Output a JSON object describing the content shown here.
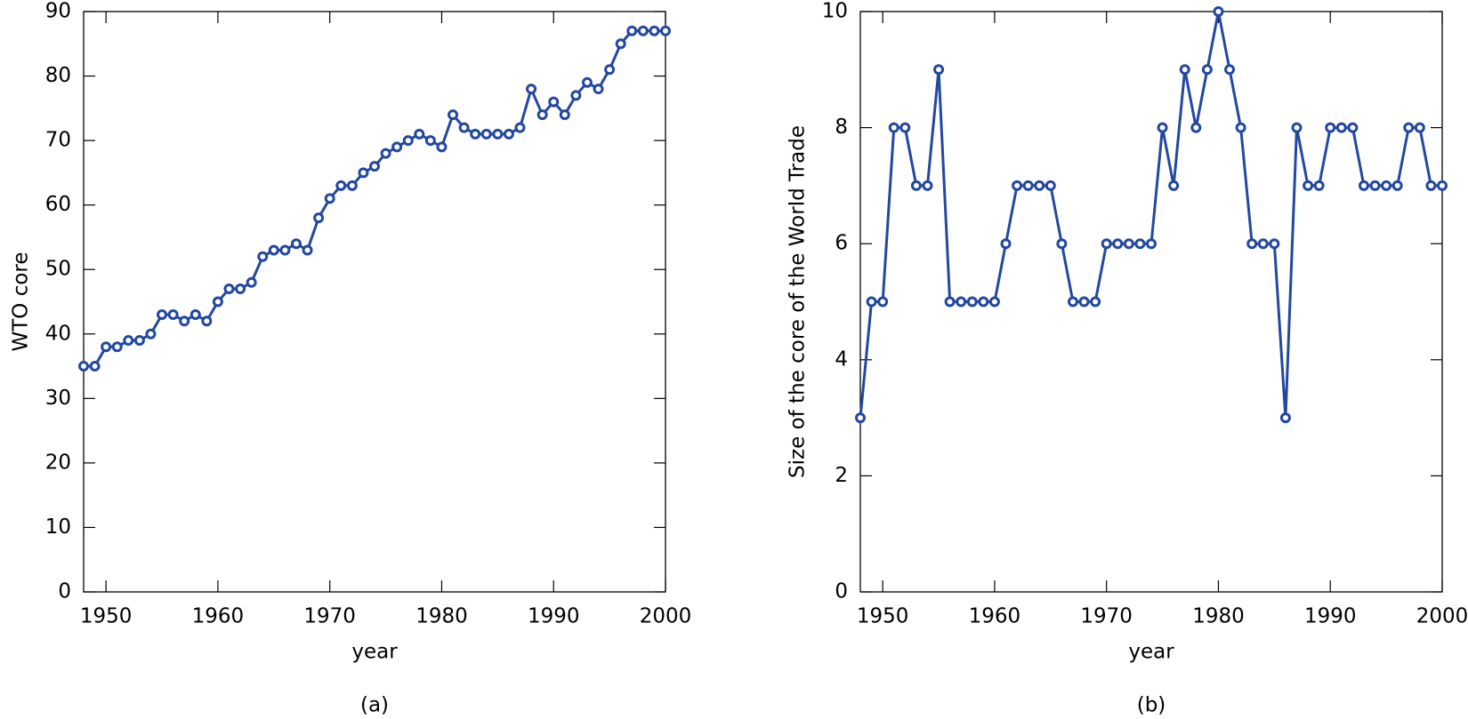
{
  "chart_data": [
    {
      "type": "line",
      "caption": "(a)",
      "xlabel": "year",
      "ylabel": "WTO core",
      "color": "#2348a0",
      "x": [
        1948,
        1949,
        1950,
        1951,
        1952,
        1953,
        1954,
        1955,
        1956,
        1957,
        1958,
        1959,
        1960,
        1961,
        1962,
        1963,
        1964,
        1965,
        1966,
        1967,
        1968,
        1969,
        1970,
        1971,
        1972,
        1973,
        1974,
        1975,
        1976,
        1977,
        1978,
        1979,
        1980,
        1981,
        1982,
        1983,
        1984,
        1985,
        1986,
        1987,
        1988,
        1989,
        1990,
        1991,
        1992,
        1993,
        1994,
        1995,
        1996,
        1997,
        1998,
        1999,
        2000
      ],
      "values": [
        35,
        35,
        38,
        38,
        39,
        39,
        40,
        43,
        43,
        42,
        43,
        42,
        45,
        47,
        47,
        48,
        52,
        53,
        53,
        54,
        53,
        58,
        61,
        63,
        63,
        65,
        66,
        68,
        69,
        70,
        71,
        70,
        69,
        74,
        72,
        71,
        71,
        71,
        71,
        72,
        78,
        74,
        76,
        74,
        77,
        79,
        78,
        81,
        85,
        87,
        87,
        87,
        87
      ],
      "xlim": [
        1948,
        2000
      ],
      "xticks": [
        1950,
        1960,
        1970,
        1980,
        1990,
        2000
      ],
      "ylim": [
        0,
        90
      ],
      "yticks": [
        0,
        10,
        20,
        30,
        40,
        50,
        60,
        70,
        80,
        90
      ]
    },
    {
      "type": "line",
      "caption": "(b)",
      "xlabel": "year",
      "ylabel": "Size of the core of the World Trade",
      "color": "#2348a0",
      "x": [
        1948,
        1949,
        1950,
        1951,
        1952,
        1953,
        1954,
        1955,
        1956,
        1957,
        1958,
        1959,
        1960,
        1961,
        1962,
        1963,
        1964,
        1965,
        1966,
        1967,
        1968,
        1969,
        1970,
        1971,
        1972,
        1973,
        1974,
        1975,
        1976,
        1977,
        1978,
        1979,
        1980,
        1981,
        1982,
        1983,
        1984,
        1985,
        1986,
        1987,
        1988,
        1989,
        1990,
        1991,
        1992,
        1993,
        1994,
        1995,
        1996,
        1997,
        1998,
        1999,
        2000
      ],
      "values": [
        3,
        5,
        5,
        8,
        8,
        7,
        7,
        9,
        5,
        5,
        5,
        5,
        5,
        6,
        7,
        7,
        7,
        7,
        6,
        5,
        5,
        5,
        6,
        6,
        6,
        6,
        6,
        8,
        7,
        9,
        8,
        9,
        10,
        9,
        8,
        6,
        6,
        6,
        3,
        8,
        7,
        7,
        8,
        8,
        8,
        7,
        7,
        7,
        7,
        8,
        8,
        7,
        7
      ],
      "xlim": [
        1948,
        2000
      ],
      "xticks": [
        1950,
        1960,
        1970,
        1980,
        1990,
        2000
      ],
      "ylim": [
        0,
        10
      ],
      "yticks": [
        0,
        2,
        4,
        6,
        8,
        10
      ]
    }
  ]
}
